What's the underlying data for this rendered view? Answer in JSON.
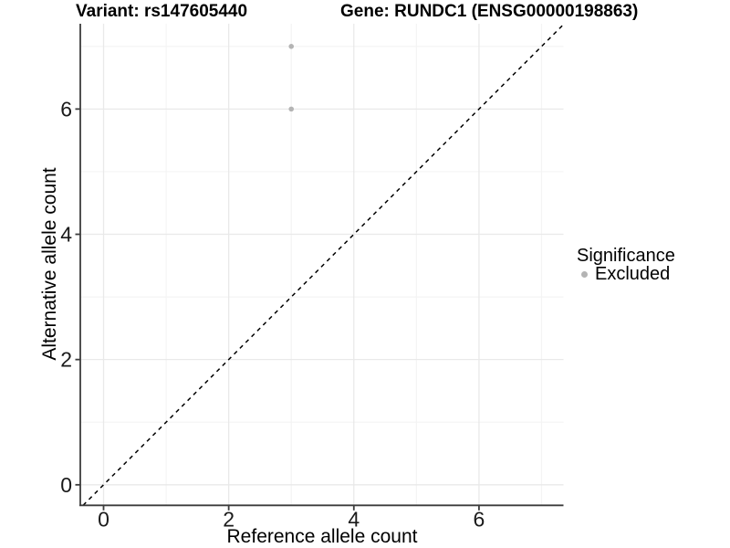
{
  "title": {
    "variant": "Variant: rs147605440",
    "gene": "Gene: RUNDC1 (ENSG00000198863)"
  },
  "axes": {
    "x": {
      "label": "Reference allele count",
      "tick_values": [
        0,
        2,
        4,
        6
      ],
      "tick_labels": [
        "0",
        "2",
        "4",
        "6"
      ],
      "minor_values": [
        1,
        3,
        5,
        7
      ]
    },
    "y": {
      "label": "Alternative allele count",
      "tick_values": [
        0,
        2,
        4,
        6
      ],
      "tick_labels": [
        "0",
        "2",
        "4",
        "6"
      ],
      "minor_values": [
        1,
        3,
        5,
        7
      ]
    }
  },
  "legend": {
    "title": "Significance",
    "items": [
      {
        "label": "Excluded",
        "color": "#b4b4b4"
      }
    ]
  },
  "chart_data": {
    "type": "scatter",
    "title": "Variant: rs147605440   Gene: RUNDC1 (ENSG00000198863)",
    "xlabel": "Reference allele count",
    "ylabel": "Alternative allele count",
    "xlim": [
      -0.37,
      7.35
    ],
    "ylim": [
      -0.33,
      7.36
    ],
    "grid": "major-and-minor",
    "legend_position": "right",
    "series": [
      {
        "name": "Excluded",
        "color": "#b4b4b4",
        "points": [
          {
            "x": 3,
            "y": 7
          },
          {
            "x": 3,
            "y": 6
          }
        ]
      }
    ],
    "reference_line": {
      "type": "identity y=x",
      "style": "dashed",
      "color": "#000000"
    }
  },
  "colors": {
    "point": "#b4b4b4",
    "axis_line": "#3c3c3c",
    "tick_label": "#1a1a1a",
    "major_grid": "#e9e9e9",
    "minor_grid": "#f4f4f4",
    "background": "#ffffff"
  }
}
